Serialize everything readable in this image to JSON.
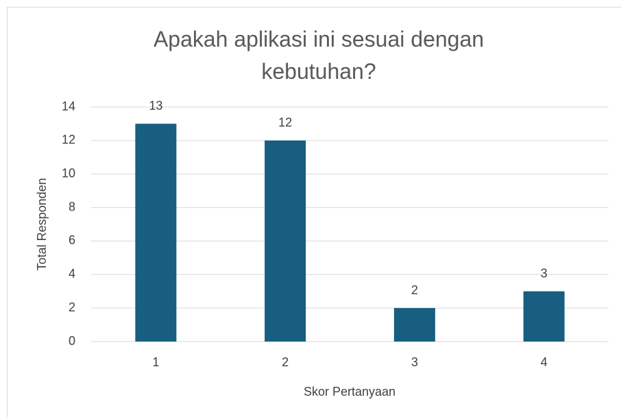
{
  "chart_data": {
    "type": "bar",
    "title": "Apakah aplikasi ini sesuai dengan kebutuhan?",
    "x_label": "Skor Pertanyaan",
    "y_label": "Total Responden",
    "categories": [
      "1",
      "2",
      "3",
      "4"
    ],
    "values": [
      13,
      12,
      2,
      3
    ],
    "color": "#175e80",
    "ylim": [
      0,
      14
    ],
    "yticks": [
      0,
      2,
      4,
      6,
      8,
      10,
      12,
      14
    ],
    "grid": true
  }
}
